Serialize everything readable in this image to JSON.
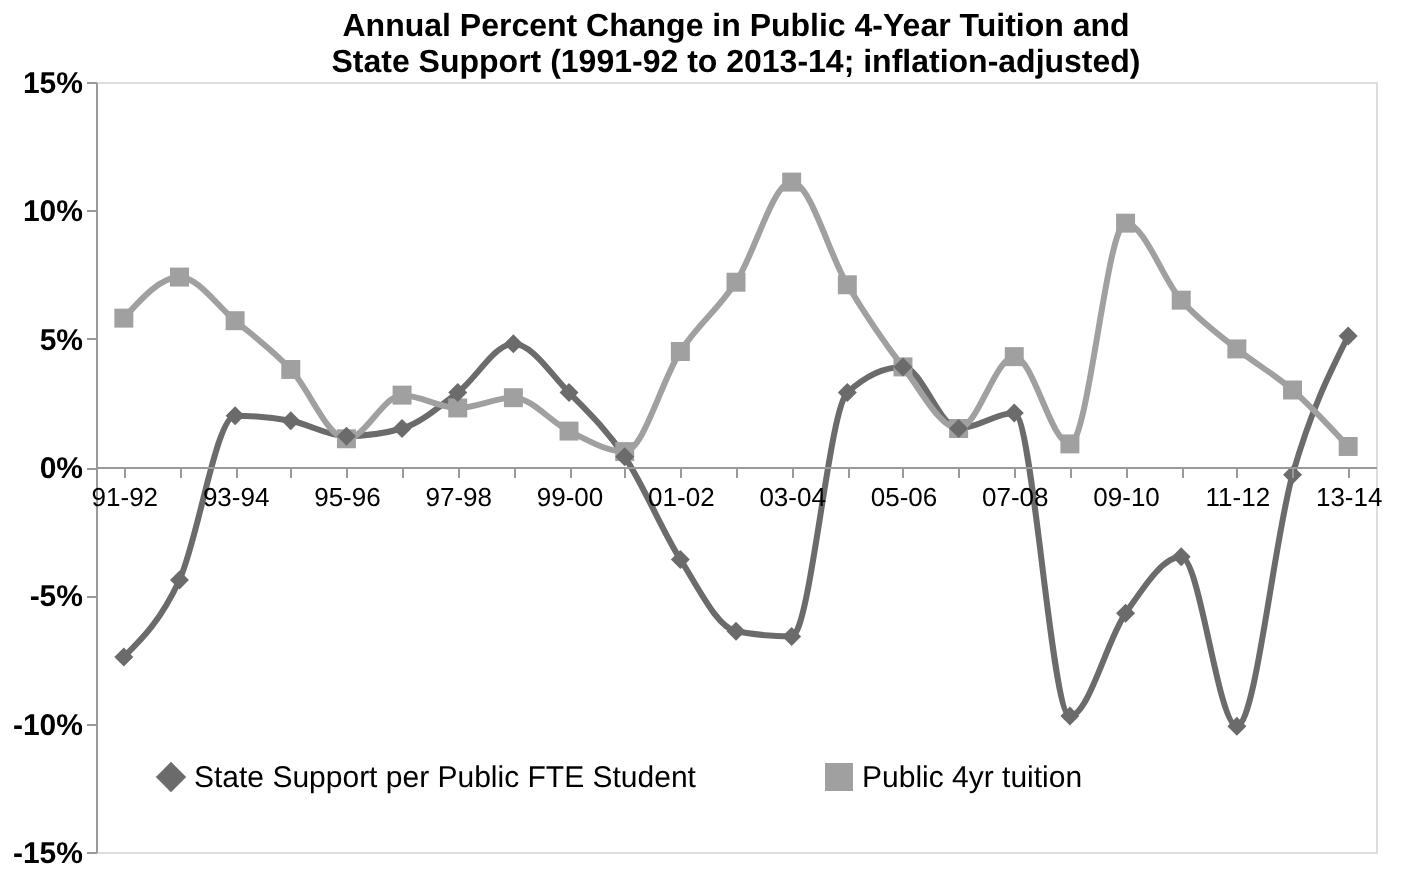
{
  "chart_data": {
    "type": "line",
    "title": "Annual Percent Change in Public 4-Year Tuition and State Support (1991-92 to 2013-14; inflation-adjusted)",
    "categories": [
      "91-92",
      null,
      "93-94",
      null,
      "95-96",
      null,
      "97-98",
      null,
      "99-00",
      null,
      "01-02",
      null,
      "03-04",
      null,
      "05-06",
      null,
      "07-08",
      null,
      "09-10",
      null,
      "11-12",
      null,
      "13-14"
    ],
    "series": [
      {
        "name": "State Support per Public FTE Student",
        "color": "#6b6b6b",
        "marker": "diamond",
        "values": [
          -7.4,
          -4.4,
          2.0,
          1.8,
          1.2,
          1.5,
          2.9,
          4.8,
          2.9,
          0.4,
          -3.6,
          -6.4,
          -6.6,
          2.9,
          3.9,
          1.5,
          2.1,
          -9.7,
          -5.7,
          -3.5,
          -10.1,
          -0.3,
          5.1
        ]
      },
      {
        "name": "Public 4yr tuition",
        "color": "#a0a0a0",
        "marker": "square",
        "values": [
          5.8,
          7.4,
          5.7,
          3.8,
          1.1,
          2.8,
          2.3,
          2.7,
          1.4,
          0.6,
          4.5,
          7.2,
          11.1,
          7.1,
          3.9,
          1.5,
          4.3,
          0.9,
          9.5,
          6.5,
          4.6,
          3.0,
          0.8
        ]
      }
    ],
    "ylim": [
      -15,
      15
    ],
    "yticks": [
      {
        "value": -15,
        "label": "-15%"
      },
      {
        "value": -10,
        "label": "-10%"
      },
      {
        "value": -5,
        "label": "-5%"
      },
      {
        "value": 0,
        "label": "0%"
      },
      {
        "value": 5,
        "label": "5%"
      },
      {
        "value": 10,
        "label": "10%"
      },
      {
        "value": 15,
        "label": "15%"
      }
    ],
    "grid": false,
    "legend": "bottom",
    "line_style": "solid"
  }
}
